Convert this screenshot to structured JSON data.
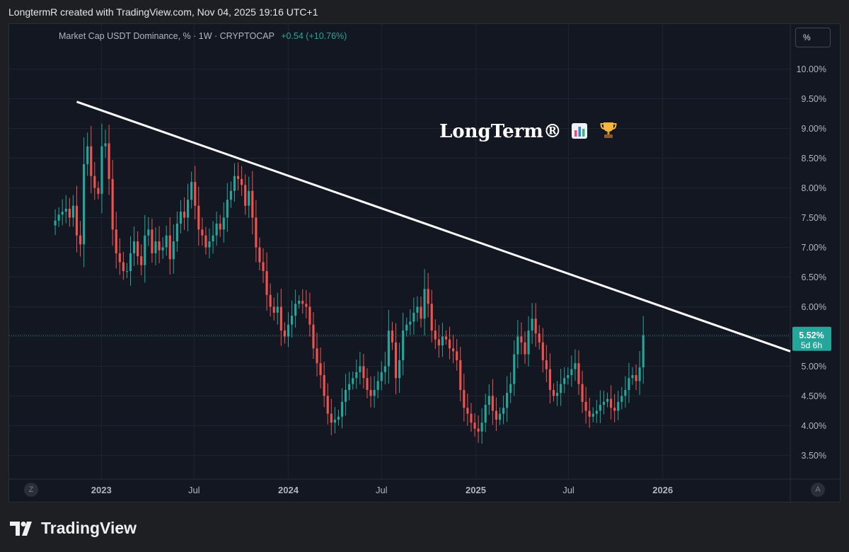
{
  "header": {
    "caption": "LongtermR created with TradingView.com, Nov 04, 2025 19:16 UTC+1"
  },
  "legend": {
    "symbol": "Market Cap USDT Dominance, % · 1W · CRYPTOCAP",
    "change": "+0.54 (+10.76%)",
    "change_color": "#26a69a"
  },
  "scale_button": "%",
  "z_button": "Z",
  "a_button": "A",
  "watermark": {
    "text": "LongTerm®",
    "icons": [
      "bar-chart-emoji-icon",
      "trophy-emoji-icon"
    ]
  },
  "footer": {
    "brand": "TradingView",
    "icon": "tradingview-logo-icon"
  },
  "colors": {
    "up": "#26a69a",
    "down": "#ef5350",
    "trendline": "#ffffff",
    "price_tag": "#26a69a"
  },
  "chart_data": {
    "type": "candlestick",
    "title": "",
    "y_unit": "%",
    "ylim": [
      3.1,
      10.4
    ],
    "y_ticks": [
      3.5,
      4.0,
      4.5,
      5.0,
      5.5,
      6.0,
      6.5,
      7.0,
      7.5,
      8.0,
      8.5,
      9.0,
      9.5,
      10.0
    ],
    "y_tick_labels": [
      "3.50%",
      "4.00%",
      "4.50%",
      "5.00%",
      "5.50%",
      "6.00%",
      "6.50%",
      "7.00%",
      "7.50%",
      "8.00%",
      "8.50%",
      "9.00%",
      "9.50%",
      "10.00%"
    ],
    "x_start": "2022-09-26",
    "x_end": "2026-09-07",
    "x_ticks": [
      {
        "date": "2023-01-01",
        "label": "2023"
      },
      {
        "date": "2023-07-01",
        "label": "Jul"
      },
      {
        "date": "2024-01-01",
        "label": "2024"
      },
      {
        "date": "2024-07-01",
        "label": "Jul"
      },
      {
        "date": "2025-01-01",
        "label": "2025"
      },
      {
        "date": "2025-07-01",
        "label": "Jul"
      },
      {
        "date": "2026-01-01",
        "label": "2026"
      }
    ],
    "grid": true,
    "last_price": {
      "value": 5.52,
      "label": "5.52%",
      "countdown": "5d 6h"
    },
    "trendline": {
      "start": {
        "date": "2022-11-14",
        "value": 9.45
      },
      "end": {
        "date": "2026-09-07",
        "value": 5.25
      }
    },
    "first_week": "2022-10-03",
    "closes": [
      7.45,
      7.55,
      7.6,
      7.65,
      7.5,
      7.7,
      7.2,
      7.05,
      8.4,
      8.7,
      8.2,
      8.0,
      7.9,
      8.7,
      8.75,
      8.15,
      7.3,
      6.9,
      6.75,
      6.6,
      6.6,
      6.9,
      7.1,
      6.85,
      6.7,
      7.2,
      7.3,
      6.9,
      7.1,
      6.95,
      7.0,
      7.2,
      6.8,
      7.1,
      7.4,
      7.6,
      7.5,
      7.8,
      8.1,
      7.7,
      7.3,
      7.2,
      7.0,
      7.1,
      7.2,
      7.4,
      7.3,
      7.5,
      7.8,
      7.95,
      8.2,
      8.15,
      8.05,
      7.7,
      7.95,
      7.5,
      7.0,
      6.75,
      6.6,
      6.2,
      6.0,
      5.9,
      6.0,
      5.6,
      5.5,
      5.7,
      5.85,
      6.05,
      6.1,
      6.05,
      6.0,
      5.7,
      5.3,
      5.05,
      4.85,
      4.5,
      4.2,
      4.05,
      4.1,
      4.15,
      4.4,
      4.6,
      4.7,
      4.8,
      4.9,
      5.0,
      4.8,
      4.6,
      4.5,
      4.6,
      4.75,
      4.9,
      5.0,
      5.6,
      5.4,
      4.8,
      5.1,
      5.6,
      5.7,
      5.75,
      5.9,
      6.0,
      5.8,
      6.3,
      6.05,
      5.6,
      5.45,
      5.35,
      5.5,
      5.45,
      5.3,
      5.25,
      5.1,
      4.6,
      4.3,
      4.2,
      4.05,
      3.95,
      3.9,
      4.05,
      4.35,
      4.5,
      4.25,
      4.1,
      4.2,
      4.3,
      4.55,
      4.7,
      5.2,
      5.5,
      5.4,
      5.2,
      5.6,
      5.8,
      5.55,
      5.4,
      5.1,
      4.95,
      4.6,
      4.5,
      4.55,
      4.7,
      4.8,
      4.85,
      4.95,
      5.05,
      4.7,
      4.4,
      4.25,
      4.15,
      4.2,
      4.25,
      4.35,
      4.4,
      4.45,
      4.3,
      4.25,
      4.4,
      4.5,
      4.6,
      4.8,
      4.85,
      4.75,
      4.98,
      5.52
    ]
  }
}
